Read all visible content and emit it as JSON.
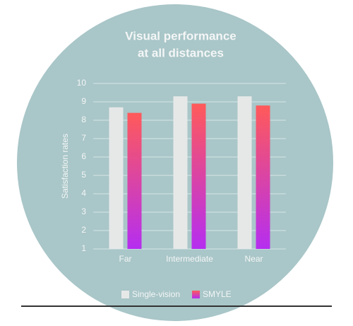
{
  "chart_data": {
    "type": "bar",
    "title": [
      "Visual performance",
      "at all distances"
    ],
    "y_label": "Satisfaction rates",
    "categories": [
      "Far",
      "Intermediate",
      "Near"
    ],
    "series": [
      {
        "name": "Single-vision",
        "color": "#e6e8e8",
        "values": [
          8.7,
          9.3,
          9.3
        ]
      },
      {
        "name": "SMYLE",
        "color": [
          "#ff5a5a",
          "#b52ef0"
        ],
        "values": [
          8.4,
          8.9,
          8.8
        ]
      }
    ],
    "ylim": [
      1,
      10
    ],
    "yticks": [
      1,
      2,
      3,
      4,
      5,
      6,
      7,
      8,
      9,
      10
    ],
    "grid": true,
    "background": "#a9c6c8"
  }
}
